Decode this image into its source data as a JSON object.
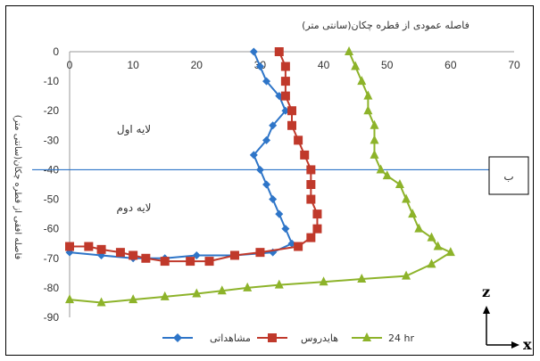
{
  "chart_data": {
    "type": "line",
    "title": "فاصله عمودی از قطره چکان(سانتی متر)",
    "ylabel": "فاصله افقی از قطره چکان(سانتی متر)",
    "xlim": [
      0,
      70
    ],
    "ylim": [
      -90,
      0
    ],
    "xticks": [
      0,
      10,
      20,
      30,
      40,
      50,
      60,
      70
    ],
    "yticks": [
      0,
      -10,
      -20,
      -30,
      -40,
      -50,
      -60,
      -70,
      -80,
      -90
    ],
    "grid": false,
    "legend_position": "bottom",
    "series": [
      {
        "name": "مشاهداتی",
        "color": "#2e75c8",
        "marker": "diamond",
        "points": [
          [
            29,
            0
          ],
          [
            30,
            -5
          ],
          [
            31,
            -10
          ],
          [
            33,
            -15
          ],
          [
            34,
            -20
          ],
          [
            32,
            -25
          ],
          [
            31,
            -30
          ],
          [
            29,
            -35
          ],
          [
            30,
            -40
          ],
          [
            31,
            -45
          ],
          [
            32,
            -50
          ],
          [
            33,
            -55
          ],
          [
            34,
            -60
          ],
          [
            35,
            -65
          ],
          [
            32,
            -68
          ],
          [
            26,
            -69
          ],
          [
            20,
            -69
          ],
          [
            15,
            -70
          ],
          [
            10,
            -70
          ],
          [
            5,
            -69
          ],
          [
            0,
            -68
          ]
        ]
      },
      {
        "name": "هایدروس",
        "color": "#c0392b",
        "marker": "square",
        "points": [
          [
            33,
            0
          ],
          [
            34,
            -5
          ],
          [
            34,
            -10
          ],
          [
            34,
            -15
          ],
          [
            35,
            -20
          ],
          [
            35,
            -25
          ],
          [
            36,
            -30
          ],
          [
            37,
            -35
          ],
          [
            38,
            -40
          ],
          [
            38,
            -45
          ],
          [
            38,
            -50
          ],
          [
            39,
            -55
          ],
          [
            39,
            -60
          ],
          [
            38,
            -63
          ],
          [
            36,
            -66
          ],
          [
            30,
            -68
          ],
          [
            26,
            -69
          ],
          [
            22,
            -71
          ],
          [
            19,
            -71
          ],
          [
            15,
            -71
          ],
          [
            12,
            -70
          ],
          [
            10,
            -69
          ],
          [
            8,
            -68
          ],
          [
            5,
            -67
          ],
          [
            3,
            -66
          ],
          [
            0,
            -66
          ]
        ]
      },
      {
        "name": "24 hr",
        "color": "#8db32a",
        "marker": "triangle",
        "points": [
          [
            44,
            0
          ],
          [
            45,
            -5
          ],
          [
            46,
            -10
          ],
          [
            47,
            -15
          ],
          [
            47,
            -20
          ],
          [
            48,
            -25
          ],
          [
            48,
            -30
          ],
          [
            48,
            -35
          ],
          [
            49,
            -40
          ],
          [
            50,
            -42
          ],
          [
            52,
            -45
          ],
          [
            53,
            -50
          ],
          [
            54,
            -55
          ],
          [
            55,
            -60
          ],
          [
            57,
            -63
          ],
          [
            58,
            -66
          ],
          [
            60,
            -68
          ],
          [
            57,
            -72
          ],
          [
            53,
            -76
          ],
          [
            46,
            -77
          ],
          [
            40,
            -78
          ],
          [
            33,
            -79
          ],
          [
            28,
            -80
          ],
          [
            24,
            -81
          ],
          [
            20,
            -82
          ],
          [
            15,
            -83
          ],
          [
            10,
            -84
          ],
          [
            5,
            -85
          ],
          [
            0,
            -84
          ]
        ]
      }
    ],
    "annotations": {
      "layer1": "لایه اول",
      "layer2": "لایه دوم",
      "boundary_y": -40,
      "box_label": "ب"
    },
    "corner_axes": {
      "vertical": "z",
      "horizontal": "x"
    }
  }
}
